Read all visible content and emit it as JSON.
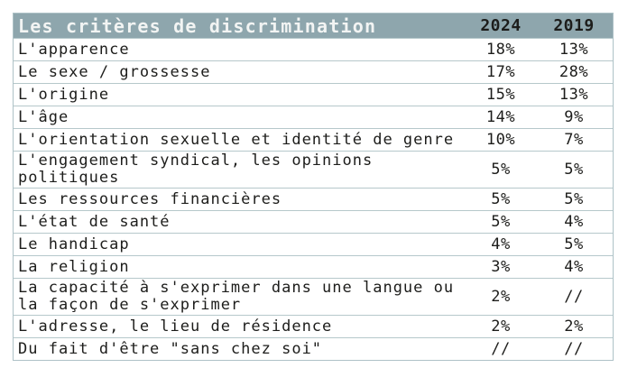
{
  "table": {
    "title": "Les critères de discrimination",
    "columns": {
      "col1": "2024",
      "col2": "2019"
    },
    "rows": [
      {
        "label": "L'apparence",
        "v2024": "18%",
        "v2019": "13%"
      },
      {
        "label": "Le sexe / grossesse",
        "v2024": "17%",
        "v2019": "28%"
      },
      {
        "label": "L'origine",
        "v2024": "15%",
        "v2019": "13%"
      },
      {
        "label": "L'âge",
        "v2024": "14%",
        "v2019": "9%"
      },
      {
        "label": "L'orientation sexuelle et identité de genre",
        "v2024": "10%",
        "v2019": "7%"
      },
      {
        "label": "L'engagement syndical, les opinions politiques",
        "v2024": "5%",
        "v2019": "5%"
      },
      {
        "label": "Les ressources financières",
        "v2024": "5%",
        "v2019": "5%"
      },
      {
        "label": "L'état de santé",
        "v2024": "5%",
        "v2019": "4%"
      },
      {
        "label": "Le handicap",
        "v2024": "4%",
        "v2019": "5%"
      },
      {
        "label": "La religion",
        "v2024": "3%",
        "v2019": "4%"
      },
      {
        "label": "La capacité à s'exprimer dans une langue ou la façon de s'exprimer",
        "v2024": "2%",
        "v2019": "//"
      },
      {
        "label": "L'adresse, le lieu de résidence",
        "v2024": "2%",
        "v2019": "2%"
      },
      {
        "label": "Du fait d'être \"sans chez soi\"",
        "v2024": "//",
        "v2019": "//"
      }
    ]
  },
  "colors": {
    "header_background": "#8ea6ad",
    "header_title_text": "#f2f4f3",
    "cell_text": "#1d1d1b",
    "row_border": "#b6c8cb"
  },
  "chart_data": {
    "type": "table",
    "title": "Les critères de discrimination",
    "columns": [
      "Les critères de discrimination",
      "2024",
      "2019"
    ],
    "categories": [
      "L'apparence",
      "Le sexe / grossesse",
      "L'origine",
      "L'âge",
      "L'orientation sexuelle et identité de genre",
      "L'engagement syndical, les opinions politiques",
      "Les ressources financières",
      "L'état de santé",
      "Le handicap",
      "La religion",
      "La capacité à s'exprimer dans une langue ou la façon de s'exprimer",
      "L'adresse, le lieu de résidence",
      "Du fait d'être \"sans chez soi\""
    ],
    "series": [
      {
        "name": "2024",
        "values": [
          18,
          17,
          15,
          14,
          10,
          5,
          5,
          5,
          4,
          3,
          2,
          2,
          null
        ]
      },
      {
        "name": "2019",
        "values": [
          13,
          28,
          13,
          9,
          7,
          5,
          5,
          4,
          5,
          4,
          null,
          2,
          null
        ]
      }
    ],
    "value_unit": "percent",
    "missing_marker": "//"
  }
}
